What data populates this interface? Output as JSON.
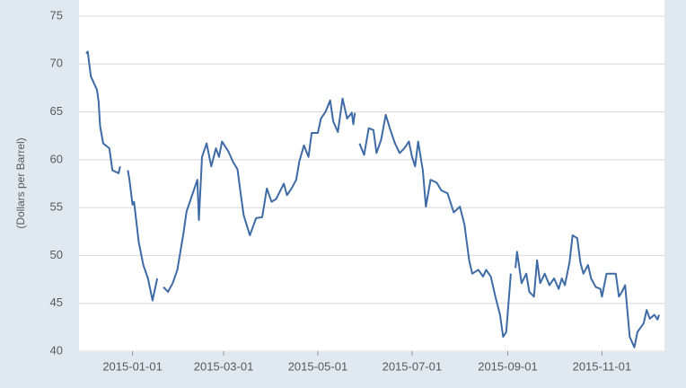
{
  "chart_data": {
    "type": "line",
    "y_label": "(Dollars per Barrel)",
    "x": [
      "2014-12-02",
      "2014-12-03",
      "2014-12-05",
      "2014-12-09",
      "2014-12-10",
      "2014-12-11",
      "2014-12-13",
      "2014-12-17",
      "2014-12-19",
      "2014-12-23",
      "2014-12-24",
      "2014-12-26",
      "2014-12-29",
      "2014-12-30",
      "2015-01-01",
      "2015-01-02",
      "2015-01-05",
      "2015-01-08",
      "2015-01-11",
      "2015-01-14",
      "2015-01-17",
      "2015-01-19",
      "2015-01-21",
      "2015-01-24",
      "2015-01-27",
      "2015-01-30",
      "2015-02-03",
      "2015-02-05",
      "2015-02-08",
      "2015-02-12",
      "2015-02-13",
      "2015-02-15",
      "2015-02-18",
      "2015-02-21",
      "2015-02-24",
      "2015-02-26",
      "2015-02-28",
      "2015-03-04",
      "2015-03-07",
      "2015-03-10",
      "2015-03-12",
      "2015-03-14",
      "2015-03-18",
      "2015-03-22",
      "2015-03-26",
      "2015-03-29",
      "2015-04-01",
      "2015-04-04",
      "2015-04-09",
      "2015-04-11",
      "2015-04-14",
      "2015-04-17",
      "2015-04-19",
      "2015-04-22",
      "2015-04-25",
      "2015-04-27",
      "2015-05-01",
      "2015-05-03",
      "2015-05-06",
      "2015-05-09",
      "2015-05-11",
      "2015-05-14",
      "2015-05-17",
      "2015-05-20",
      "2015-05-23",
      "2015-05-24",
      "2015-05-25",
      "2015-05-26",
      "2015-05-28",
      "2015-05-31",
      "2015-06-03",
      "2015-06-06",
      "2015-06-08",
      "2015-06-11",
      "2015-06-14",
      "2015-06-17",
      "2015-06-20",
      "2015-06-23",
      "2015-06-26",
      "2015-06-29",
      "2015-07-01",
      "2015-07-03",
      "2015-07-05",
      "2015-07-08",
      "2015-07-10",
      "2015-07-13",
      "2015-07-17",
      "2015-07-20",
      "2015-07-24",
      "2015-07-28",
      "2015-08-01",
      "2015-08-04",
      "2015-08-07",
      "2015-08-09",
      "2015-08-13",
      "2015-08-16",
      "2015-08-18",
      "2015-08-21",
      "2015-08-24",
      "2015-08-27",
      "2015-08-29",
      "2015-08-31",
      "2015-09-03",
      "2015-09-05",
      "2015-09-06",
      "2015-09-07",
      "2015-09-10",
      "2015-09-13",
      "2015-09-15",
      "2015-09-18",
      "2015-09-20",
      "2015-09-22",
      "2015-09-25",
      "2015-09-28",
      "2015-10-01",
      "2015-10-04",
      "2015-10-06",
      "2015-10-08",
      "2015-10-11",
      "2015-10-13",
      "2015-10-16",
      "2015-10-18",
      "2015-10-20",
      "2015-10-23",
      "2015-10-25",
      "2015-10-28",
      "2015-10-31",
      "2015-11-01",
      "2015-11-04",
      "2015-11-07",
      "2015-11-10",
      "2015-11-12",
      "2015-11-14",
      "2015-11-16",
      "2015-11-19",
      "2015-11-22",
      "2015-11-24",
      "2015-11-28",
      "2015-11-30",
      "2015-12-02",
      "2015-12-05",
      "2015-12-07",
      "2015-12-08"
    ],
    "series": [
      {
        "color": "#3e6aa6",
        "values": [
          71.1,
          71.3,
          68.7,
          67.3,
          66.1,
          63.5,
          61.7,
          61.2,
          58.9,
          58.6,
          59.3,
          null,
          58.9,
          57.9,
          55.3,
          55.6,
          51.4,
          49.0,
          47.6,
          45.3,
          47.6,
          null,
          46.7,
          46.2,
          47.1,
          48.5,
          52.3,
          54.6,
          56.0,
          57.9,
          53.7,
          60.3,
          61.7,
          59.3,
          61.2,
          60.3,
          61.9,
          60.9,
          59.8,
          59.0,
          56.5,
          54.2,
          52.1,
          53.9,
          54.0,
          57.0,
          55.6,
          55.9,
          57.5,
          56.3,
          57.0,
          57.9,
          59.8,
          61.5,
          60.3,
          62.8,
          62.8,
          64.3,
          65.0,
          66.2,
          64.0,
          62.9,
          66.4,
          64.3,
          64.9,
          63.7,
          64.9,
          null,
          61.7,
          60.5,
          63.3,
          63.1,
          60.7,
          62.1,
          64.7,
          63.1,
          61.7,
          60.7,
          61.2,
          61.9,
          60.3,
          59.3,
          61.9,
          58.9,
          55.1,
          57.9,
          57.6,
          56.8,
          56.5,
          54.5,
          55.1,
          53.2,
          49.5,
          48.1,
          48.5,
          47.8,
          48.5,
          47.8,
          45.7,
          43.8,
          41.5,
          42.0,
          48.1,
          null,
          48.7,
          50.4,
          47.1,
          48.1,
          46.2,
          45.7,
          49.5,
          47.1,
          48.1,
          46.9,
          47.6,
          46.5,
          47.6,
          46.9,
          49.3,
          52.1,
          51.8,
          49.3,
          48.1,
          49.0,
          47.6,
          46.7,
          46.5,
          45.7,
          48.1,
          48.1,
          48.1,
          45.7,
          46.2,
          46.9,
          41.5,
          40.4,
          42.0,
          42.9,
          44.3,
          43.4,
          43.8,
          43.3,
          43.8
        ]
      }
    ],
    "xlim": [
      "2014-12-02",
      "2015-12-08"
    ],
    "xticks": [
      "2015-01-01",
      "2015-03-01",
      "2015-05-01",
      "2015-07-01",
      "2015-09-01",
      "2015-11-01"
    ],
    "ylim": [
      40,
      75
    ],
    "yticks": [
      40,
      45,
      50,
      55,
      60,
      65,
      70,
      75
    ],
    "grid": true
  }
}
